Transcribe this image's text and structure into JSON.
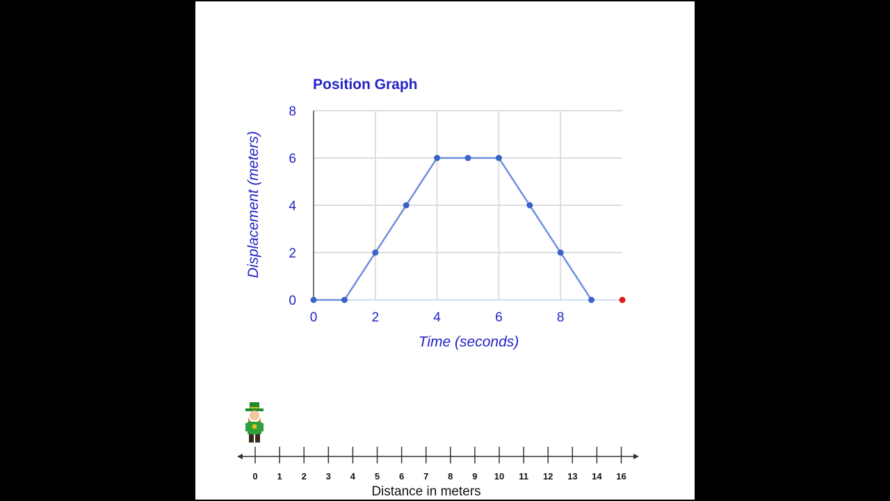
{
  "chart_data": {
    "type": "line",
    "title": "Position Graph",
    "xlabel": "Time (seconds)",
    "ylabel": "Displacement (meters)",
    "xlim": [
      0,
      10
    ],
    "ylim": [
      0,
      8
    ],
    "x_ticks": [
      "0",
      "2",
      "4",
      "6",
      "8"
    ],
    "y_ticks": [
      "0",
      "2",
      "4",
      "6",
      "8"
    ],
    "grid": true,
    "series": [
      {
        "x": [
          0,
          1,
          2,
          3,
          4,
          5,
          6,
          7,
          8,
          9
        ],
        "y": [
          0,
          0,
          2,
          4,
          6,
          6,
          6,
          4,
          2,
          0
        ]
      }
    ],
    "current_point": {
      "x": 10,
      "y": 0
    },
    "colors": {
      "line": "#6a8fdb",
      "point": "#3a63c8",
      "current": "#d81b1b",
      "text": "#2222c8",
      "grid": "#dddddd"
    }
  },
  "number_line": {
    "label": "Distance in meters",
    "ticks": [
      "0",
      "1",
      "2",
      "3",
      "4",
      "5",
      "6",
      "7",
      "8",
      "9",
      "10",
      "11",
      "12",
      "13",
      "14",
      "16"
    ],
    "character_icon": "leprechaun-icon",
    "character_position": 0
  }
}
